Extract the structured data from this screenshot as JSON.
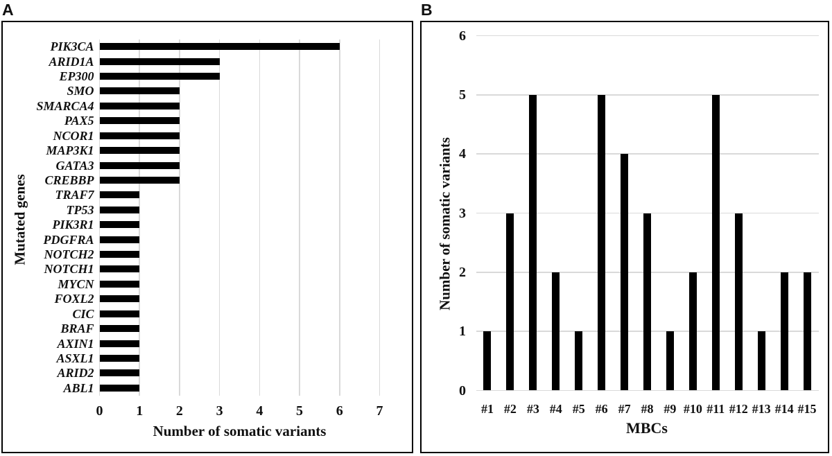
{
  "panels": {
    "a": {
      "letter": "A"
    },
    "b": {
      "letter": "B"
    }
  },
  "chart_data": [
    {
      "panel": "A",
      "type": "bar",
      "orientation": "horizontal",
      "categories": [
        "PIK3CA",
        "ARID1A",
        "EP300",
        "SMO",
        "SMARCA4",
        "PAX5",
        "NCOR1",
        "MAP3K1",
        "GATA3",
        "CREBBP",
        "TRAF7",
        "TP53",
        "PIK3R1",
        "PDGFRA",
        "NOTCH2",
        "NOTCH1",
        "MYCN",
        "FOXL2",
        "CIC",
        "BRAF",
        "AXIN1",
        "ASXL1",
        "ARID2",
        "ABL1"
      ],
      "values": [
        6,
        3,
        3,
        2,
        2,
        2,
        2,
        2,
        2,
        2,
        1,
        1,
        1,
        1,
        1,
        1,
        1,
        1,
        1,
        1,
        1,
        1,
        1,
        1
      ],
      "xlabel": "Number of somatic variants",
      "ylabel": "Mutated genes",
      "xlim": [
        0,
        7
      ],
      "xticks": [
        0,
        1,
        2,
        3,
        4,
        5,
        6,
        7
      ],
      "grid": "vertical gridlines at each integer",
      "legend": "none"
    },
    {
      "panel": "B",
      "type": "bar",
      "orientation": "vertical",
      "categories": [
        "#1",
        "#2",
        "#3",
        "#4",
        "#5",
        "#6",
        "#7",
        "#8",
        "#9",
        "#10",
        "#11",
        "#12",
        "#13",
        "#14",
        "#15"
      ],
      "values": [
        1,
        3,
        5,
        2,
        1,
        5,
        4,
        3,
        1,
        2,
        5,
        3,
        1,
        2,
        2
      ],
      "xlabel": "MBCs",
      "ylabel": "Number of somatic variants",
      "ylim": [
        0,
        6
      ],
      "yticks": [
        0,
        1,
        2,
        3,
        4,
        5,
        6
      ],
      "grid": "horizontal gridlines at each integer",
      "legend": "none"
    }
  ],
  "colors": {
    "bar": "#000000",
    "gridline": "#d9d9d9",
    "panel_border": "#000000",
    "background": "#ffffff",
    "text": "#111111"
  }
}
